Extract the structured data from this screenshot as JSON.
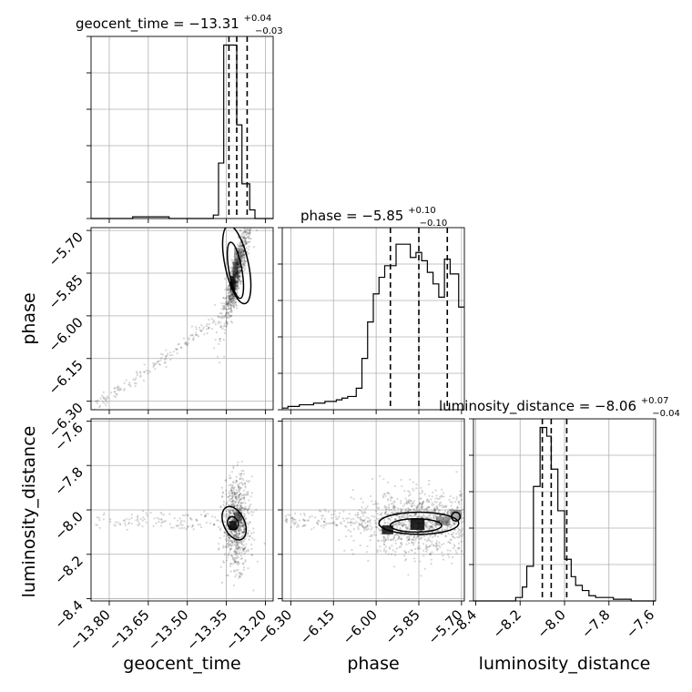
{
  "figure": {
    "type": "corner",
    "parameters": [
      "geocent_time",
      "phase",
      "luminosity_distance"
    ]
  },
  "chart_data": {
    "type": "corner",
    "parameters": [
      {
        "name": "geocent_time",
        "label": "geocent_time",
        "title_main": "geocent_time = −13.31",
        "title_plus": "+0.04",
        "title_minus": "−0.03",
        "median": -13.31,
        "q16": -13.34,
        "q84": -13.27,
        "range": [
          -13.87,
          -13.17
        ],
        "ticks": [
          -13.8,
          -13.65,
          -13.5,
          -13.35,
          -13.2
        ],
        "tick_labels": [
          "−13.80",
          "−13.65",
          "−13.50",
          "−13.35",
          "−13.20"
        ],
        "hist_edges": [
          -13.87,
          -13.85,
          -13.82,
          -13.8,
          -13.78,
          -13.75,
          -13.73,
          -13.71,
          -13.68,
          -13.66,
          -13.64,
          -13.61,
          -13.59,
          -13.57,
          -13.54,
          -13.52,
          -13.5,
          -13.47,
          -13.45,
          -13.43,
          -13.4,
          -13.38,
          -13.36,
          -13.33,
          -13.31,
          -13.29,
          -13.26,
          -13.24,
          -13.22,
          -13.19,
          -13.17
        ],
        "hist_counts": [
          0,
          0,
          0,
          0,
          0,
          0,
          0,
          1,
          1,
          1,
          1,
          1,
          1,
          0,
          0,
          0,
          0,
          0,
          0,
          0,
          2,
          32,
          100,
          100,
          54,
          20,
          5,
          0,
          0,
          0
        ],
        "hist_ylim": [
          0,
          105
        ]
      },
      {
        "name": "phase",
        "label": "phase",
        "title_main": "phase = −5.85",
        "title_plus": "+0.10",
        "title_minus": "−0.10",
        "median": -5.85,
        "q16": -5.95,
        "q84": -5.75,
        "range": [
          -6.33,
          -5.69
        ],
        "ticks": [
          -6.3,
          -6.15,
          -6.0,
          -5.85,
          -5.7
        ],
        "tick_labels": [
          "−6.30",
          "−6.15",
          "−6.00",
          "−5.85",
          "−5.70"
        ],
        "hist_edges": [
          -6.33,
          -6.31,
          -6.29,
          -6.27,
          -6.24,
          -6.22,
          -6.2,
          -6.18,
          -6.16,
          -6.14,
          -6.12,
          -6.1,
          -6.07,
          -6.05,
          -6.03,
          -6.01,
          -5.99,
          -5.97,
          -5.95,
          -5.93,
          -5.91,
          -5.88,
          -5.86,
          -5.84,
          -5.82,
          -5.8,
          -5.78,
          -5.76,
          -5.74,
          -5.71,
          -5.69
        ],
        "hist_counts": [
          1,
          2,
          2,
          3,
          3,
          4,
          4,
          5,
          5,
          6,
          7,
          8,
          13,
          31,
          53,
          70,
          80,
          87,
          87,
          100,
          100,
          92,
          95,
          90,
          83,
          76,
          68,
          91,
          82,
          62
        ],
        "hist_ylim": [
          0,
          110
        ]
      },
      {
        "name": "luminosity_distance",
        "label": "luminosity_distance",
        "title_main": "luminosity_distance = −8.06",
        "title_plus": "+0.07",
        "title_minus": "−0.04",
        "median": -8.06,
        "q16": -8.1,
        "q84": -7.99,
        "range": [
          -8.41,
          -7.59
        ],
        "ticks": [
          -8.4,
          -8.2,
          -8.0,
          -7.8,
          -7.6
        ],
        "tick_labels": [
          "−8.4",
          "−8.2",
          "−8.0",
          "−7.8",
          "−7.6"
        ],
        "hist_edges": [
          -8.41,
          -8.38,
          -8.36,
          -8.33,
          -8.3,
          -8.27,
          -8.25,
          -8.22,
          -8.19,
          -8.17,
          -8.14,
          -8.11,
          -8.08,
          -8.06,
          -8.03,
          -8.0,
          -7.97,
          -7.95,
          -7.92,
          -7.89,
          -7.86,
          -7.84,
          -7.81,
          -7.78,
          -7.75,
          -7.73,
          -7.7,
          -7.67,
          -7.65,
          -7.62,
          -7.59
        ],
        "hist_counts": [
          0,
          0,
          0,
          0,
          0,
          0,
          0,
          2,
          8,
          20,
          66,
          100,
          95,
          76,
          52,
          24,
          14,
          9,
          6,
          3,
          2,
          2,
          2,
          1,
          1,
          1,
          0,
          0,
          0,
          0
        ],
        "hist_ylim": [
          0,
          105
        ]
      }
    ],
    "grid": true
  }
}
